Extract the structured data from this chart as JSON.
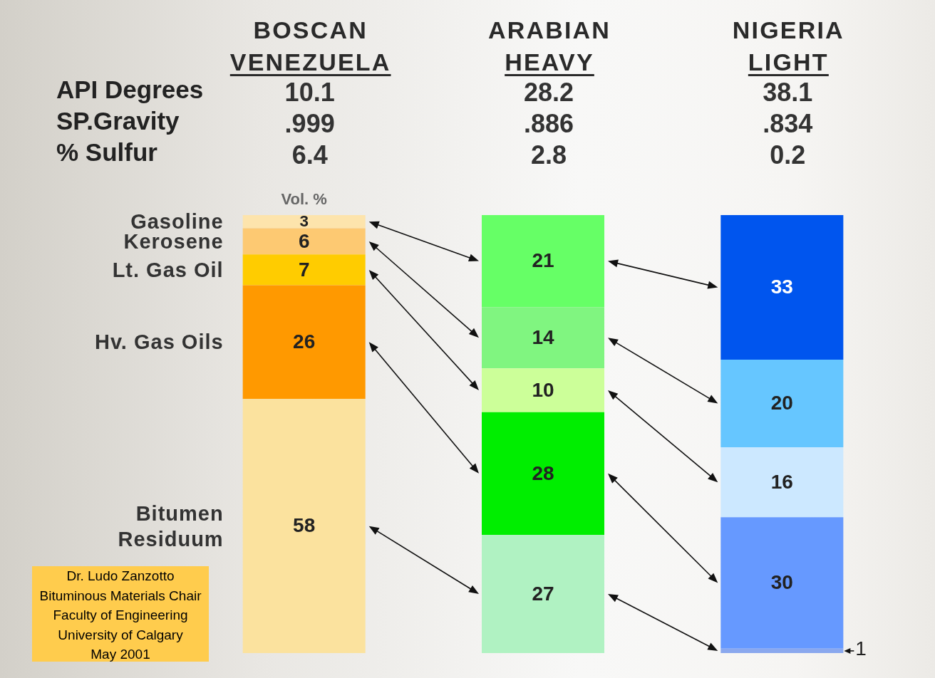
{
  "chart_data": {
    "type": "bar",
    "stacked": true,
    "data_labels": true,
    "tick_labels": "x",
    "ylabel": "Vol. %",
    "categories": [
      "BOSCAN\nVENEZUELA",
      "ARABIAN\nHEAVY",
      "NIGERIA\nLIGHT"
    ],
    "ylim": [
      0,
      100
    ],
    "series": [
      {
        "name": "Bitumen Residuum",
        "colors": [
          "#fbe29e",
          "#b0f2c2",
          "#8aa8ee"
        ],
        "values": [
          58,
          27,
          1
        ]
      },
      {
        "name": "Hv. Gas Oils",
        "colors": [
          "#ff9900",
          "#00ee00",
          "#6699ff"
        ],
        "values": [
          26,
          28,
          30
        ]
      },
      {
        "name": "Lt. Gas Oil",
        "colors": [
          "#ffcc00",
          "#ccff99",
          "#cce8ff"
        ],
        "values": [
          7,
          10,
          16
        ]
      },
      {
        "name": "Kerosene",
        "colors": [
          "#fdc972",
          "#80f580",
          "#66c6ff"
        ],
        "values": [
          6,
          14,
          20
        ]
      },
      {
        "name": "Gasoline",
        "colors": [
          "#fde4ac",
          "#66ff66",
          "#0055ee"
        ],
        "values": [
          3,
          21,
          33
        ]
      }
    ],
    "annotations": [
      "API Degrees",
      "10.1",
      "28.2",
      "38.1",
      "SP.Gravity",
      ".999",
      ".886",
      ".834",
      "% Sulfur",
      "6.4",
      "2.8",
      "0.2",
      "Dr. Ludo Zanzotto",
      "Bituminous Materials Chair",
      "Faculty of Engineering",
      "University of Calgary",
      "May 2001"
    ]
  }
}
